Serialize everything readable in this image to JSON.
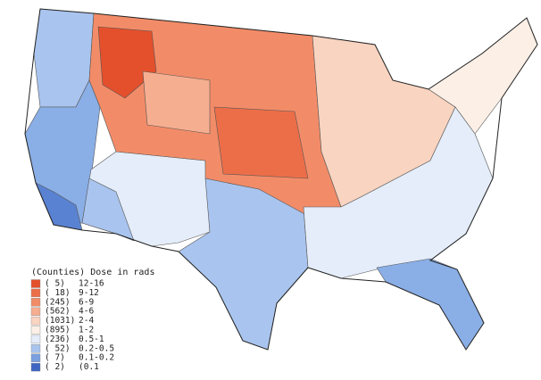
{
  "legend": {
    "title": "(Counties) Dose in rads",
    "items": [
      {
        "count": "( 5)",
        "range": "12-16",
        "color": "#e4502c"
      },
      {
        "count": "( 18)",
        "range": "9-12",
        "color": "#ec6e48"
      },
      {
        "count": "(245)",
        "range": "6-9",
        "color": "#f28c68"
      },
      {
        "count": "(562)",
        "range": "4-6",
        "color": "#f6ae90"
      },
      {
        "count": "(1031)",
        "range": "2-4",
        "color": "#f9d4c0"
      },
      {
        "count": "(895)",
        "range": "1-2",
        "color": "#fbefe6"
      },
      {
        "count": "(236)",
        "range": "0.5-1",
        "color": "#e4edf9"
      },
      {
        "count": "( 52)",
        "range": "0.2-0.5",
        "color": "#a9c4ee"
      },
      {
        "count": "( 7)",
        "range": "0.1-0.2",
        "color": "#7aa0e0"
      },
      {
        "count": "( 2)",
        "range": "(0.1",
        "color": "#3f66c2"
      }
    ]
  }
}
